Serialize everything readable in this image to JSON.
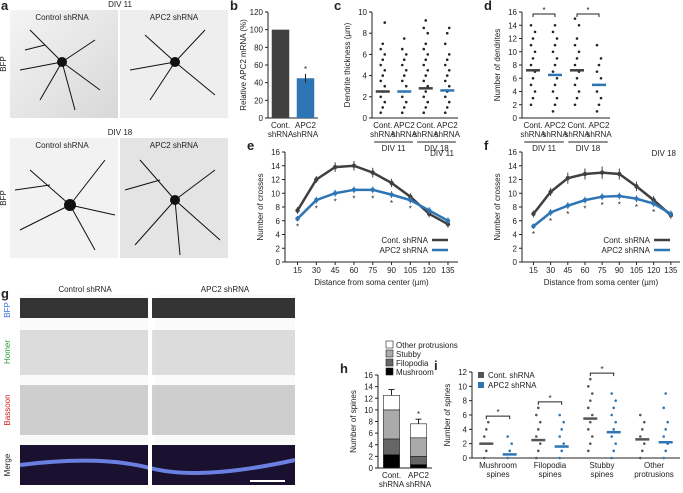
{
  "images": {
    "a": {
      "panel": "a",
      "stain": "BFP",
      "conditions": [
        "Control shRNA",
        "APC2 shRNA"
      ],
      "divs": [
        "DIV 11",
        "DIV 18"
      ]
    },
    "g": {
      "panel": "g",
      "conditions": [
        "Control shRNA",
        "APC2 shRNA"
      ],
      "channels": [
        "BFP",
        "Homer",
        "Bassoon",
        "Merge"
      ]
    }
  },
  "chart_data": [
    {
      "type": "bar",
      "panel": "b",
      "y_label": "Relative APC2 mRNA (%)",
      "categories": [
        [
          "Cont.",
          "shRNA"
        ],
        [
          "APC2",
          "shRNA"
        ]
      ],
      "values": [
        100,
        45
      ],
      "errors": [
        0,
        5
      ],
      "colors": [
        "#404040",
        "#2e75b6"
      ],
      "ylim": [
        0,
        120
      ],
      "yticks": [
        0,
        20,
        40,
        60,
        80,
        100,
        120
      ],
      "annotations": [
        {
          "category": 1,
          "label": "*"
        }
      ]
    },
    {
      "type": "strip",
      "panel": "c",
      "y_label": "Dendrite thickness (µm)",
      "categories": [
        [
          "Cont.",
          "shRNA"
        ],
        [
          "APC2",
          "shRNA"
        ],
        [
          "Cont.",
          "shRNA"
        ],
        [
          "APC2",
          "shRNA"
        ]
      ],
      "groups": [
        "DIV 11",
        "DIV 18"
      ],
      "ylim": [
        0,
        10
      ],
      "yticks": [
        0,
        2,
        4,
        6,
        8,
        10
      ],
      "values": [
        [
          0.5,
          1,
          1.5,
          2,
          2.5,
          3,
          3.5,
          4,
          4.5,
          5,
          5.5,
          6,
          6.5,
          7,
          9
        ],
        [
          0.5,
          1,
          1.5,
          2,
          2.5,
          3,
          3.5,
          4,
          4.5,
          5,
          5.5,
          6,
          6.5,
          7.5
        ],
        [
          0.5,
          1,
          1.5,
          2,
          2.5,
          3,
          3.5,
          4,
          4.5,
          5,
          5.5,
          6,
          6.5,
          7,
          8,
          8.5,
          9.2
        ],
        [
          0.5,
          1,
          1.5,
          2,
          2.5,
          3,
          3.5,
          4,
          4.5,
          5,
          5.5,
          6,
          7,
          8,
          8.5
        ]
      ],
      "medians": [
        2.5,
        2.5,
        2.8,
        2.6
      ],
      "median_colors": [
        "#404040",
        "#2e75b6",
        "#404040",
        "#2e75b6"
      ],
      "point_color": "#222"
    },
    {
      "type": "strip",
      "panel": "d",
      "y_label": "Number of dendrites",
      "categories": [
        [
          "Cont.",
          "shRNA"
        ],
        [
          "APC2",
          "shRNA"
        ],
        [
          "Cont.",
          "shRNA"
        ],
        [
          "APC2",
          "shRNA"
        ]
      ],
      "groups": [
        "DIV 11",
        "DIV 18"
      ],
      "ylim": [
        0,
        16
      ],
      "yticks": [
        0,
        2,
        4,
        6,
        8,
        10,
        12,
        14,
        16
      ],
      "values": [
        [
          2,
          3,
          4,
          5,
          6,
          7,
          8,
          9,
          10,
          11,
          12,
          13,
          14
        ],
        [
          1,
          2,
          3,
          4,
          5,
          6,
          7,
          8,
          9,
          10,
          11,
          12,
          13,
          14
        ],
        [
          2,
          3,
          4,
          5,
          6,
          7,
          8,
          9,
          10,
          11,
          12,
          14,
          15
        ],
        [
          1,
          2,
          3,
          4,
          5,
          6,
          7,
          8,
          9,
          11
        ]
      ],
      "medians": [
        7.2,
        6.5,
        7.2,
        5
      ],
      "median_colors": [
        "#404040",
        "#2e75b6",
        "#404040",
        "#2e75b6"
      ],
      "point_color": "#222",
      "comparisons": [
        {
          "between": [
            0,
            1
          ],
          "label": "*"
        },
        {
          "between": [
            2,
            3
          ],
          "label": "*"
        }
      ]
    },
    {
      "type": "line",
      "panel": "e",
      "title": "DIV 11",
      "y_label": "Number of crosses",
      "x_label": "Distance from soma center (µm)",
      "x": [
        15,
        30,
        45,
        60,
        75,
        90,
        105,
        120,
        135
      ],
      "xlim": [
        5,
        143
      ],
      "xticks": [
        15,
        30,
        45,
        60,
        75,
        90,
        105,
        120,
        135
      ],
      "ylim": [
        0,
        16
      ],
      "yticks": [
        0,
        2,
        4,
        6,
        8,
        10,
        12,
        14,
        16
      ],
      "series": [
        {
          "name": "Cont. shRNA",
          "color": "#404040",
          "values": [
            7.5,
            12,
            13.8,
            14,
            13,
            11.5,
            9.5,
            7,
            5.5
          ],
          "errors": [
            0.5,
            0.5,
            0.7,
            0.7,
            0.7,
            0.6,
            0.5,
            0.5,
            0.5
          ]
        },
        {
          "name": "APC2 shRNA",
          "color": "#2e75b6",
          "values": [
            6.3,
            9,
            10,
            10.5,
            10.5,
            9.8,
            9,
            7.5,
            6
          ],
          "errors": [
            0.4,
            0.5,
            0.5,
            0.5,
            0.5,
            0.5,
            0.5,
            0.5,
            0.5
          ]
        }
      ],
      "significant_points": [
        0,
        1,
        2,
        3,
        4,
        5,
        6
      ],
      "significance_label": "*"
    },
    {
      "type": "line",
      "panel": "f",
      "title": "DIV 18",
      "y_label": "Number of crosses",
      "x_label": "Distance from soma center (µm)",
      "x": [
        15,
        30,
        45,
        60,
        75,
        90,
        105,
        120,
        135
      ],
      "xlim": [
        5,
        143
      ],
      "xticks": [
        15,
        30,
        45,
        60,
        75,
        90,
        105,
        120,
        135
      ],
      "ylim": [
        0,
        16
      ],
      "yticks": [
        0,
        2,
        4,
        6,
        8,
        10,
        12,
        14,
        16
      ],
      "series": [
        {
          "name": "Cont. shRNA",
          "color": "#404040",
          "values": [
            7,
            10.2,
            12.2,
            12.8,
            13,
            12.8,
            11,
            9,
            6.8
          ],
          "errors": [
            0.5,
            0.6,
            0.8,
            0.8,
            0.9,
            0.8,
            0.7,
            0.6,
            0.5
          ]
        },
        {
          "name": "APC2 shRNA",
          "color": "#2e75b6",
          "values": [
            5.2,
            7.2,
            8.2,
            9,
            9.5,
            9.6,
            9.2,
            8.5,
            7
          ],
          "errors": [
            0.4,
            0.5,
            0.5,
            0.5,
            0.5,
            0.5,
            0.5,
            0.5,
            0.5
          ]
        }
      ],
      "significant_points": [
        0,
        1,
        2,
        3,
        4,
        5,
        6,
        7
      ],
      "significance_label": "*"
    },
    {
      "type": "stacked",
      "panel": "h",
      "y_label": "Number of spines",
      "categories": [
        [
          "Cont.",
          "shRNA"
        ],
        [
          "APC2",
          "shRNA"
        ]
      ],
      "ylim": [
        0,
        16
      ],
      "yticks": [
        0,
        2,
        4,
        6,
        8,
        10,
        12,
        14,
        16
      ],
      "series": [
        {
          "name": "Mushroom",
          "color": "#000000",
          "values": [
            2.3,
            0.6
          ]
        },
        {
          "name": "Filopodia",
          "color": "#666666",
          "values": [
            2.7,
            1.4
          ]
        },
        {
          "name": "Stubby",
          "color": "#aaaaaa",
          "values": [
            5,
            3.2
          ]
        },
        {
          "name": "Other protrusions",
          "color": "#ffffff",
          "values": [
            2.5,
            2.4
          ]
        }
      ],
      "total_errors": [
        1,
        0.8
      ],
      "annotations": [
        {
          "category": 1,
          "label": "*"
        }
      ]
    },
    {
      "type": "strip",
      "panel": "i",
      "y_label": "Number of spines",
      "categories": [
        [
          "Mushroom",
          "spines"
        ],
        [
          "Filopodia",
          "spines"
        ],
        [
          "Stubby",
          "spines"
        ],
        [
          "Other",
          "protrusions"
        ]
      ],
      "ylim": [
        0,
        12
      ],
      "yticks": [
        0,
        2,
        4,
        6,
        8,
        10,
        12
      ],
      "series": [
        {
          "name": "Cont. shRNA",
          "color": "#555555",
          "values": [
            [
              0,
              1,
              2,
              3,
              4,
              5
            ],
            [
              0,
              1,
              2,
              3,
              4,
              5,
              6,
              7
            ],
            [
              1,
              2,
              3,
              4,
              5,
              6,
              7,
              8,
              9,
              10,
              11
            ],
            [
              0,
              1,
              2,
              3,
              4,
              5,
              6
            ]
          ],
          "medians": [
            2,
            2.5,
            5.5,
            2.6
          ]
        },
        {
          "name": "APC2 shRNA",
          "color": "#2e75b6",
          "values": [
            [
              0,
              1,
              2,
              3
            ],
            [
              0,
              1,
              2,
              3,
              4,
              5,
              6
            ],
            [
              0,
              1,
              2,
              3,
              4,
              5,
              6,
              7,
              8,
              9
            ],
            [
              0,
              1,
              2,
              3,
              4,
              5,
              7,
              9
            ]
          ],
          "medians": [
            0.5,
            1.6,
            3.6,
            2.2
          ]
        }
      ],
      "comparisons": [
        {
          "category": 0,
          "label": "*"
        },
        {
          "category": 1,
          "label": "*"
        },
        {
          "category": 2,
          "label": "*"
        }
      ]
    }
  ]
}
